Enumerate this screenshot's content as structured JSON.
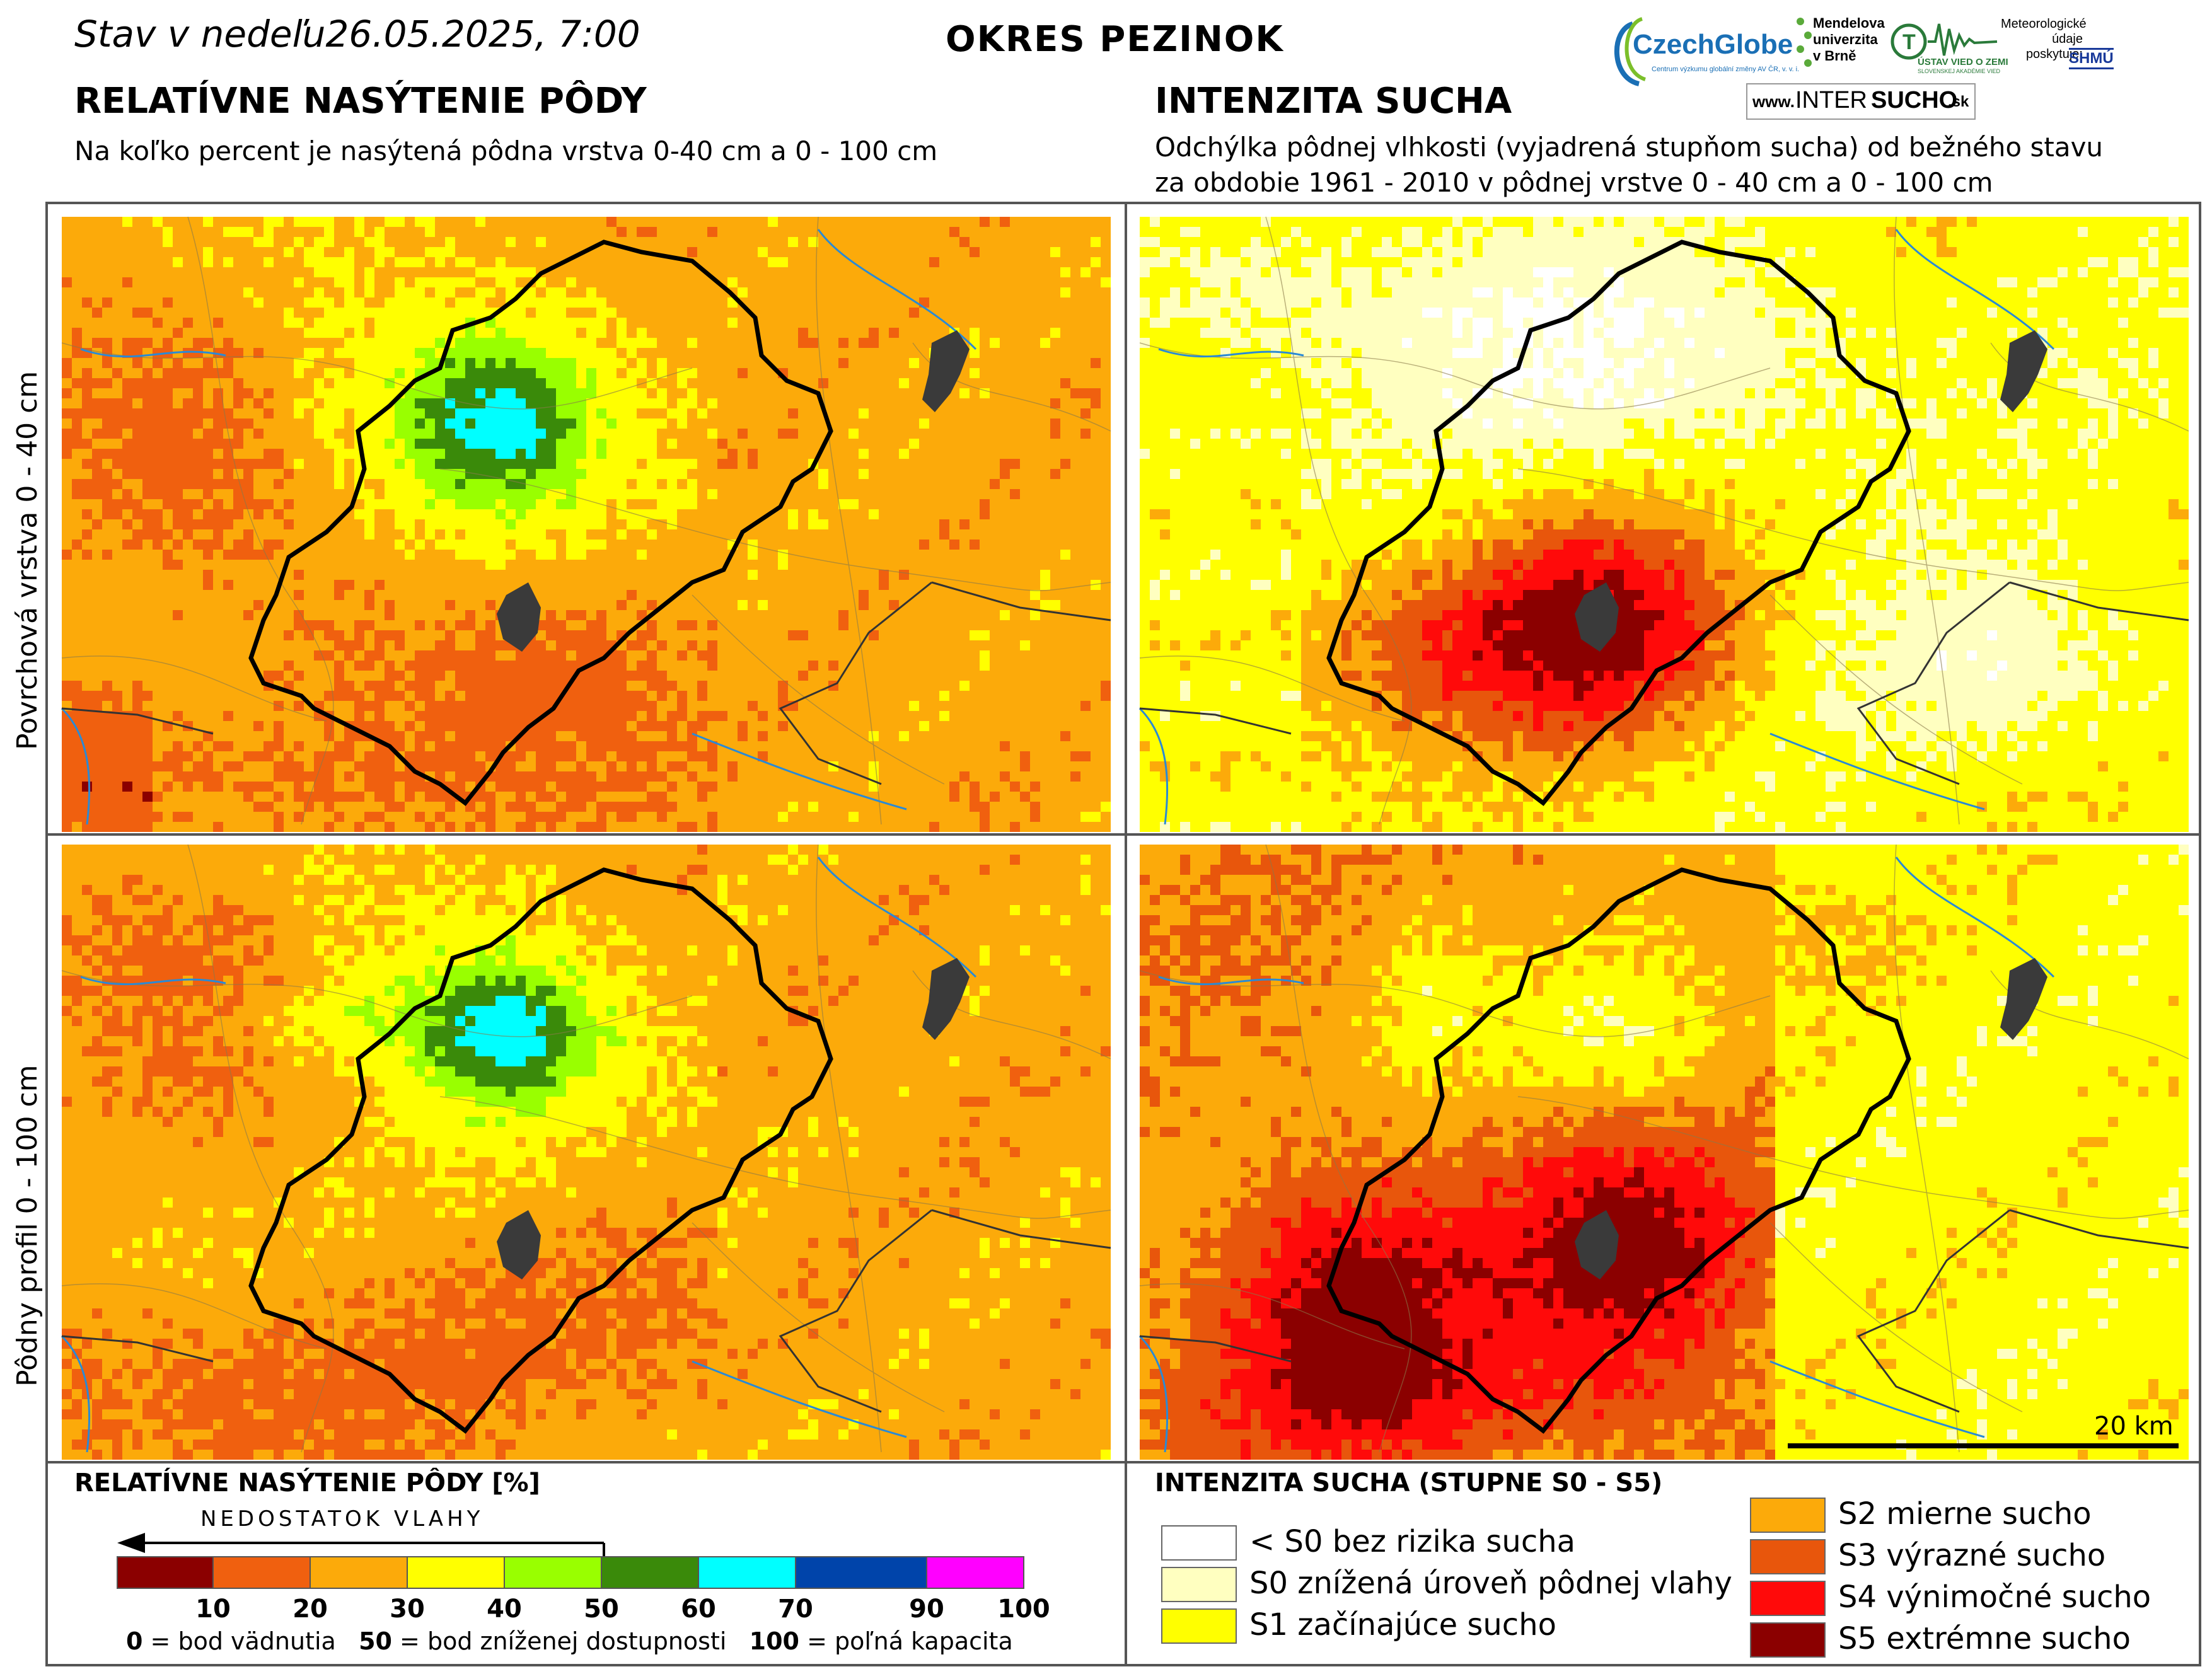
{
  "header": {
    "date_label": "Stav v nedeľu26.05.2025, 7:00",
    "district": "OKRES  PEZINOK"
  },
  "logos": {
    "czechglobe": "CzechGlobe",
    "czechglobe_sub": "Centrum výzkumu globální změny AV ČR, v. v. i.",
    "mendelu_line1": "Mendelova",
    "mendelu_line2": "univerzita",
    "mendelu_line3": "v Brně",
    "uvzp": "ÚSTAV VIED O ZEMI",
    "uvzp_sub": "SLOVENSKEJ AKADÉMIE VIED",
    "meteo_line1": "Meteorologické",
    "meteo_line2": "údaje",
    "meteo_line3": "poskytuje:",
    "shmu": "SHMÚ",
    "intersucho_www": "www.",
    "intersucho_inter": "INTER",
    "intersucho_sucho": "SUCHO",
    "intersucho_sk": ".sk"
  },
  "left_section": {
    "title": "RELATÍVNE NASÝTENIE PÔDY",
    "subtitle": "Na koľko percent je nasýtená pôdna vrstva 0-40 cm a 0 - 100 cm"
  },
  "right_section": {
    "title": "INTENZITA SUCHA",
    "subtitle_line1": "Odchýlka pôdnej vlhkosti (vyjadrená stupňom sucha) od bežného stavu",
    "subtitle_line2": "za obdobie 1961 - 2010 v pôdnej vrstve 0 - 40 cm a 0 - 100 cm"
  },
  "rows": {
    "top": "Povrchová vrstva 0 - 40 cm",
    "bottom": "Pôdny profil 0 - 100 cm"
  },
  "scale_bar": "20 km",
  "saturation_legend": {
    "title": "RELATÍVNE NASÝTENIE PÔDY [%]",
    "arrow_label": "NEDOSTATOK VLAHY",
    "ticks": [
      "10",
      "20",
      "30",
      "40",
      "50",
      "60",
      "70",
      "90",
      "100"
    ],
    "classes": [
      {
        "from": 0,
        "to": 10,
        "color": "#8b0000"
      },
      {
        "from": 10,
        "to": 20,
        "color": "#f0600f"
      },
      {
        "from": 20,
        "to": 30,
        "color": "#fcaa0a"
      },
      {
        "from": 30,
        "to": 40,
        "color": "#ffff00"
      },
      {
        "from": 40,
        "to": 50,
        "color": "#99ff00"
      },
      {
        "from": 50,
        "to": 60,
        "color": "#3a8a0a"
      },
      {
        "from": 60,
        "to": 70,
        "color": "#00ffff"
      },
      {
        "from": 70,
        "to": 90,
        "color": "#0044aa"
      },
      {
        "from": 90,
        "to": 100,
        "color": "#ff00ff"
      }
    ],
    "note_0_key": "0",
    "note_0": " = bod vädnutia",
    "note_50_key": "50",
    "note_50": " = bod zníženej dostupnosti",
    "note_100_key": "100",
    "note_100": " = poľná kapacita"
  },
  "drought_legend": {
    "title": "INTENZITA SUCHA (STUPNE S0 - S5)",
    "items": [
      {
        "label": "< S0 bez rizika sucha",
        "color": "#ffffff"
      },
      {
        "label": "S0 znížená úroveň pôdnej vlahy",
        "color": "#ffffc0"
      },
      {
        "label": "S1 začínajúce sucho",
        "color": "#ffff00"
      },
      {
        "label": "S2 mierne sucho",
        "color": "#fcaa0a"
      },
      {
        "label": "S3 výrazné sucho",
        "color": "#e8560c"
      },
      {
        "label": "S4 výnimočné sucho",
        "color": "#ff0a0a"
      },
      {
        "label": "S5 extrémne sucho",
        "color": "#8b0000"
      }
    ]
  }
}
